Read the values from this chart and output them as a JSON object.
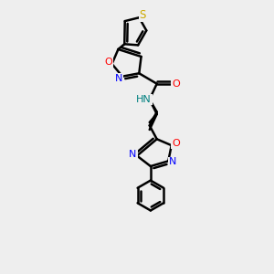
{
  "background_color": "#eeeeee",
  "bond_color": "#000000",
  "bond_width": 1.8,
  "S_color": "#ccaa00",
  "O_color": "#ff0000",
  "N_color": "#0000ff",
  "NH_color": "#008080",
  "figsize": [
    3.0,
    3.0
  ],
  "dpi": 100,
  "xlim": [
    0,
    10
  ],
  "ylim": [
    0,
    13
  ]
}
